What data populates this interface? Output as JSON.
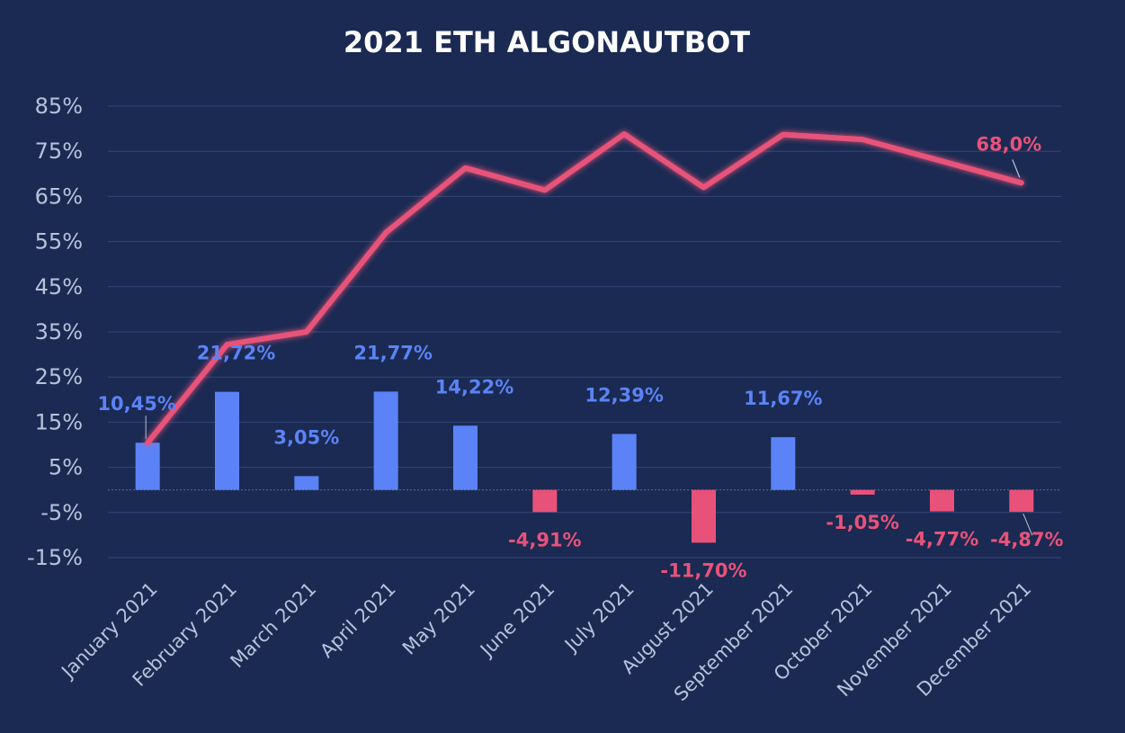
{
  "chart_data": {
    "type": "bar",
    "title": "2021 ETH ALGONAUTBOT",
    "xlabel": "",
    "ylabel": "",
    "ylim": [
      -15,
      85
    ],
    "yticks": [
      "85%",
      "75%",
      "65%",
      "55%",
      "45%",
      "35%",
      "25%",
      "15%",
      "5%",
      "-5%",
      "-15%"
    ],
    "ytick_values": [
      85,
      75,
      65,
      55,
      45,
      35,
      25,
      15,
      5,
      -5,
      -15
    ],
    "grid": true,
    "categories": [
      "January 2021",
      "February 2021",
      "March 2021",
      "April 2021",
      "May 2021",
      "June 2021",
      "July 2021",
      "August 2021",
      "September 2021",
      "October 2021",
      "November 2021",
      "December 2021"
    ],
    "series": [
      {
        "type": "bar",
        "values": [
          10.45,
          21.72,
          3.05,
          21.77,
          14.22,
          -4.91,
          12.39,
          -11.7,
          11.67,
          -1.05,
          -4.77,
          -4.87
        ],
        "labels": [
          "10,45%",
          "21,72%",
          "3,05%",
          "21,77%",
          "14,22%",
          "-4,91%",
          "12,39%",
          "-11,70%",
          "11,67%",
          "-1,05%",
          "-4,77%",
          "-4,87%"
        ],
        "positive_color": "#5b83f7",
        "negative_color": "#e8527a"
      },
      {
        "type": "line",
        "values": [
          10.45,
          32.2,
          35.0,
          57.0,
          71.3,
          66.4,
          78.8,
          67.0,
          78.7,
          77.6,
          72.8,
          68.0
        ],
        "end_label": "68,0%",
        "color": "#e8527a"
      }
    ]
  }
}
